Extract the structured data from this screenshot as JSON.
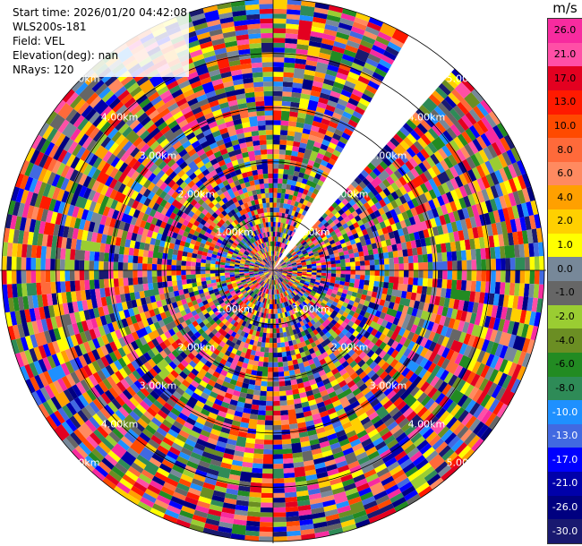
{
  "header": {
    "start_time": "Start time: 2026/01/20 04:42:08",
    "instrument": "WLS200s-181",
    "field": "Field: VEL",
    "elevation": "Elevation(deg): nan",
    "nrays": "NRays: 120"
  },
  "colorbar": {
    "unit": "m/s",
    "ticks": [
      "26.0",
      "21.0",
      "17.0",
      "13.0",
      "10.0",
      "8.0",
      "6.0",
      "4.0",
      "2.0",
      "1.0",
      "0.0",
      "-1.0",
      "-2.0",
      "-4.0",
      "-6.0",
      "-8.0",
      "-10.0",
      "-13.0",
      "-17.0",
      "-21.0",
      "-26.0",
      "-30.0"
    ],
    "colors": [
      "#f72b9f",
      "#ff4fa6",
      "#e30020",
      "#ff1a00",
      "#ff4a00",
      "#ff6a3a",
      "#ff8a60",
      "#ffa000",
      "#ffd000",
      "#ffff00",
      "#778899",
      "#666666",
      "#9acd32",
      "#6b8e23",
      "#228b22",
      "#2e8b57",
      "#1e90ff",
      "#4169e1",
      "#0000ff",
      "#0000aa",
      "#000080",
      "#191970"
    ]
  },
  "chart_data": {
    "type": "heatmap",
    "projection": "polar-ppi",
    "field": "VEL",
    "units": "m/s",
    "n_rays": 120,
    "range_rings_km": [
      1.0,
      2.0,
      3.0,
      4.0,
      5.0
    ],
    "ring_labels": [
      "1.00km",
      "2.00km",
      "3.00km",
      "4.00km",
      "5.00km"
    ],
    "max_range_km": 5.0,
    "missing_sector_deg": [
      30,
      42
    ],
    "value_range": [
      -30,
      30
    ],
    "colorbar_levels": [
      26.0,
      21.0,
      17.0,
      13.0,
      10.0,
      8.0,
      6.0,
      4.0,
      2.0,
      1.0,
      0.0,
      -1.0,
      -2.0,
      -4.0,
      -6.0,
      -8.0,
      -10.0,
      -13.0,
      -17.0,
      -21.0,
      -26.0,
      -30.0
    ]
  }
}
